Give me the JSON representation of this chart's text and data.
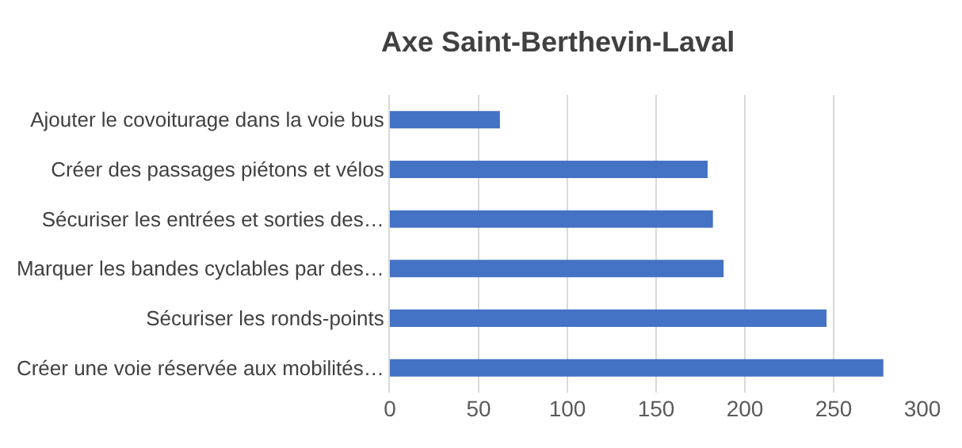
{
  "chart_data": {
    "type": "bar",
    "orientation": "horizontal",
    "title": "Axe Saint-Berthevin-Laval",
    "categories": [
      "Ajouter le covoiturage dans la voie bus",
      "Créer des passages piétons et vélos",
      "Sécuriser les entrées et sorties des…",
      "Marquer les bandes cyclables par des…",
      "Sécuriser les ronds-points",
      "Créer une voie réservée aux mobilités…"
    ],
    "values": [
      62,
      179,
      182,
      188,
      246,
      278
    ],
    "color": "#4472c4",
    "xlim": [
      0,
      300
    ],
    "xticks": [
      0,
      50,
      100,
      150,
      200,
      250,
      300
    ],
    "grid": "x",
    "legend": false
  }
}
